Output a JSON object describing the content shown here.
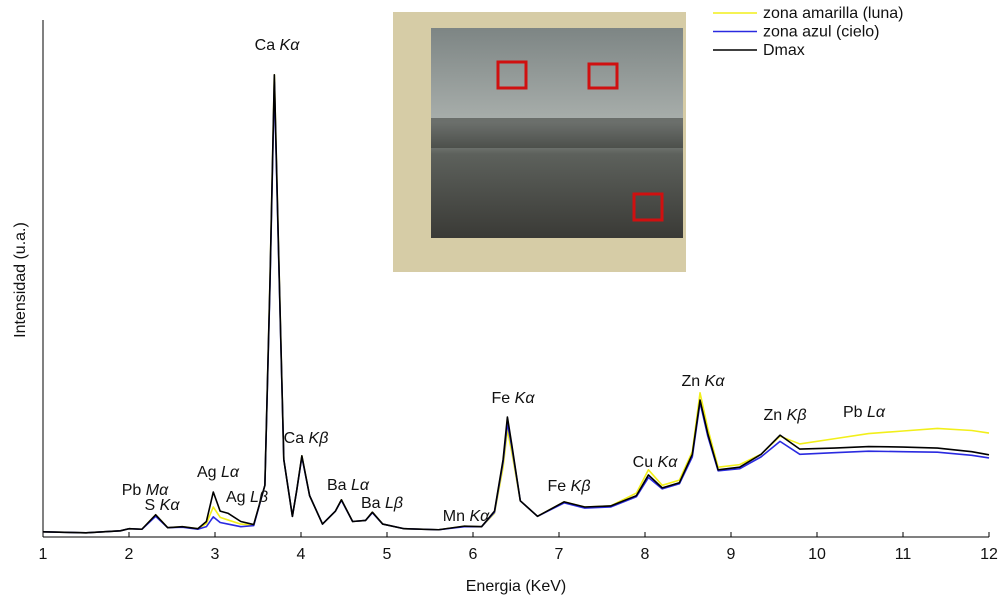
{
  "chart_data": {
    "type": "line",
    "xlabel": "Energia (KeV)",
    "ylabel": "Intensidad (u.a.)",
    "xlim": [
      1,
      12
    ],
    "xticks": [
      1,
      2,
      3,
      4,
      5,
      6,
      7,
      8,
      9,
      10,
      11,
      12
    ],
    "ylim": [
      0,
      100
    ],
    "legend": "upper right",
    "x": [
      1,
      1.5,
      1.9,
      2.0,
      2.15,
      2.31,
      2.45,
      2.62,
      2.8,
      2.9,
      2.98,
      3.06,
      3.15,
      3.3,
      3.45,
      3.58,
      3.64,
      3.69,
      3.74,
      3.8,
      3.9,
      3.95,
      4.01,
      4.1,
      4.25,
      4.4,
      4.47,
      4.6,
      4.75,
      4.83,
      4.95,
      5.2,
      5.6,
      5.9,
      6.1,
      6.25,
      6.35,
      6.4,
      6.45,
      6.55,
      6.75,
      7.06,
      7.3,
      7.6,
      7.9,
      8.04,
      8.2,
      8.4,
      8.55,
      8.64,
      8.73,
      8.85,
      9.1,
      9.35,
      9.57,
      9.8,
      10.2,
      10.6,
      11.0,
      11.4,
      11.8,
      12
    ],
    "series": [
      {
        "name": "zona amarilla (luna)",
        "color": "#f2ef1a",
        "values": [
          1,
          0.8,
          1.2,
          1.6,
          1.5,
          4.3,
          1.8,
          2.0,
          1.6,
          2.6,
          5.8,
          3.8,
          3.3,
          2.5,
          2.3,
          10,
          50,
          89.4,
          55,
          15,
          4,
          9,
          15.7,
          8,
          2.5,
          5,
          7.2,
          3,
          3.2,
          4.8,
          2.5,
          1.6,
          1.4,
          2.1,
          2,
          4.6,
          13.5,
          20.7,
          16.5,
          7,
          4,
          6.8,
          5.8,
          6,
          8.5,
          13,
          10,
          11,
          16.5,
          27.9,
          21,
          13.5,
          14,
          16,
          19.5,
          18,
          19,
          20,
          20.5,
          21,
          20.6,
          20.1
        ]
      },
      {
        "name": "zona azul (cielo)",
        "color": "#2a2ae0",
        "values": [
          1,
          0.8,
          1.2,
          1.6,
          1.5,
          4.0,
          1.8,
          1.9,
          1.5,
          2.0,
          3.9,
          2.8,
          2.5,
          2.0,
          2.2,
          10,
          49,
          88,
          54,
          15,
          4,
          9,
          15.5,
          8,
          2.5,
          5,
          7.1,
          3,
          3.2,
          4.7,
          2.5,
          1.6,
          1.4,
          2.0,
          2,
          4.8,
          14.5,
          22,
          17.5,
          7,
          4,
          6.6,
          5.6,
          5.8,
          7.8,
          11.5,
          9.3,
          10.3,
          15.5,
          26,
          19.5,
          12.8,
          13.2,
          15.5,
          18.5,
          16,
          16.3,
          16.6,
          16.5,
          16.4,
          15.8,
          15.3
        ]
      },
      {
        "name": "Dmax",
        "color": "#000000",
        "values": [
          1,
          0.8,
          1.2,
          1.6,
          1.5,
          4.3,
          1.8,
          2.0,
          1.6,
          3.0,
          8.7,
          5.0,
          4.6,
          3.0,
          2.4,
          10,
          50,
          89.4,
          55,
          15,
          4,
          9,
          15.7,
          8,
          2.5,
          5,
          7.2,
          3,
          3.2,
          4.8,
          2.5,
          1.6,
          1.4,
          2.1,
          2,
          5,
          15,
          23.2,
          18,
          7,
          4,
          6.8,
          5.8,
          6,
          8,
          12,
          9.5,
          10.5,
          16,
          26.5,
          20,
          13,
          13.5,
          16,
          19.7,
          17,
          17.2,
          17.5,
          17.4,
          17.2,
          16.5,
          15.9
        ]
      }
    ],
    "annotations": [
      {
        "element": "Ca",
        "line": "Kα"
      },
      {
        "element": "Ca",
        "line": "Kβ"
      },
      {
        "element": "Pb",
        "line": "Mα"
      },
      {
        "element": "S",
        "line": "Kα"
      },
      {
        "element": "Ag",
        "line": "Lα"
      },
      {
        "element": "Ag",
        "line": "Lβ"
      },
      {
        "element": "Ba",
        "line": "Lα"
      },
      {
        "element": "Ba",
        "line": "Lβ"
      },
      {
        "element": "Mn",
        "line": "Kα"
      },
      {
        "element": "Fe",
        "line": "Kα"
      },
      {
        "element": "Fe",
        "line": "Kβ"
      },
      {
        "element": "Cu",
        "line": "Kα"
      },
      {
        "element": "Zn",
        "line": "Kα"
      },
      {
        "element": "Zn",
        "line": "Kβ"
      },
      {
        "element": "Pb",
        "line": "Lα"
      }
    ]
  }
}
